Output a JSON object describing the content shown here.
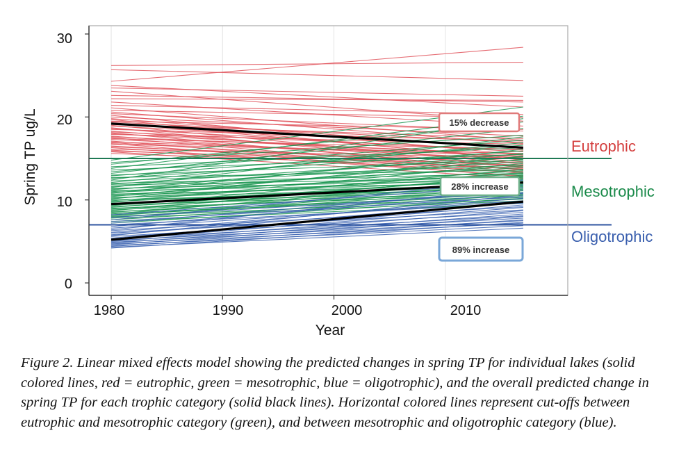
{
  "chart_data": {
    "type": "line",
    "xlabel": "Year",
    "ylabel": "Spring TP ug/L",
    "xlim": [
      1978,
      2021
    ],
    "ylim": [
      -1.5,
      31
    ],
    "xticks": [
      "1980",
      "1990",
      "2000",
      "2010"
    ],
    "yticks": [
      "0",
      "10",
      "20",
      "30"
    ],
    "grid": "vertical",
    "colors": {
      "eutrophic": "#e0525a",
      "mesotrophic": "#1a9550",
      "oligotrophic": "#3a62b0",
      "overall": "#000000"
    },
    "cutoffs": [
      {
        "category": "eutrophic-mesotrophic",
        "y": 15,
        "color": "#1f7a55"
      },
      {
        "category": "mesotrophic-oligotrophic",
        "y": 7,
        "color": "#2f55a0"
      }
    ],
    "category_labels": [
      {
        "text": "Eutrophic",
        "color": "#d4403f"
      },
      {
        "text": "Mesotrophic",
        "color": "#1a8a4a"
      },
      {
        "text": "Oligotrophic",
        "color": "#3a5fae"
      }
    ],
    "annotations": [
      {
        "text": "15% decrease",
        "border": "#e07a7a"
      },
      {
        "text": "28% increase",
        "border": "#6fb08a"
      },
      {
        "text": "89% increase",
        "border": "#7aa7d8"
      }
    ],
    "overall_series": [
      {
        "category": "eutrophic",
        "x": [
          1980,
          2017
        ],
        "y": [
          19.2,
          16.3
        ]
      },
      {
        "category": "mesotrophic",
        "x": [
          1980,
          2017
        ],
        "y": [
          9.5,
          12.1
        ]
      },
      {
        "category": "oligotrophic",
        "x": [
          1980,
          2017
        ],
        "y": [
          5.2,
          9.8
        ]
      }
    ],
    "lake_series": {
      "x": [
        1980,
        2017
      ],
      "eutrophic": [
        [
          26.2,
          26.6
        ],
        [
          25.7,
          24.4
        ],
        [
          24.3,
          28.4
        ],
        [
          23.8,
          21.2
        ],
        [
          23.5,
          22.5
        ],
        [
          23.1,
          19.5
        ],
        [
          22.6,
          21.8
        ],
        [
          22.2,
          22.0
        ],
        [
          21.8,
          18.9
        ],
        [
          21.4,
          20.3
        ],
        [
          21.1,
          17.2
        ],
        [
          20.8,
          19.9
        ],
        [
          20.6,
          16.8
        ],
        [
          20.4,
          18.3
        ],
        [
          20.2,
          15.4
        ],
        [
          20.0,
          17.7
        ],
        [
          19.8,
          16.2
        ],
        [
          19.7,
          14.8
        ],
        [
          19.5,
          18.5
        ],
        [
          19.4,
          16.9
        ],
        [
          19.3,
          15.0
        ],
        [
          19.1,
          17.4
        ],
        [
          19.0,
          14.3
        ],
        [
          18.9,
          16.4
        ],
        [
          18.7,
          13.9
        ],
        [
          18.6,
          15.8
        ],
        [
          18.5,
          17.1
        ],
        [
          18.3,
          14.6
        ],
        [
          18.2,
          16.0
        ],
        [
          18.1,
          13.6
        ],
        [
          18.0,
          15.2
        ],
        [
          17.9,
          16.7
        ],
        [
          17.7,
          14.1
        ],
        [
          17.6,
          15.5
        ],
        [
          17.5,
          13.4
        ],
        [
          17.4,
          16.1
        ],
        [
          17.3,
          14.9
        ],
        [
          17.1,
          13.2
        ],
        [
          17.0,
          15.3
        ],
        [
          16.9,
          14.0
        ],
        [
          16.8,
          12.8
        ],
        [
          16.7,
          15.6
        ],
        [
          16.5,
          13.7
        ],
        [
          16.4,
          14.5
        ],
        [
          16.3,
          12.9
        ],
        [
          16.1,
          15.1
        ],
        [
          16.0,
          13.3
        ],
        [
          15.9,
          14.2
        ],
        [
          15.8,
          12.6
        ],
        [
          15.6,
          13.8
        ]
      ],
      "mesotrophic": [
        [
          14.8,
          21.2
        ],
        [
          14.5,
          17.8
        ],
        [
          14.3,
          19.4
        ],
        [
          14.0,
          16.3
        ],
        [
          13.8,
          20.1
        ],
        [
          13.6,
          15.5
        ],
        [
          13.4,
          17.2
        ],
        [
          13.2,
          18.6
        ],
        [
          13.0,
          14.8
        ],
        [
          12.9,
          16.6
        ],
        [
          12.7,
          13.6
        ],
        [
          12.6,
          15.9
        ],
        [
          12.4,
          19.8
        ],
        [
          12.3,
          14.2
        ],
        [
          12.1,
          16.9
        ],
        [
          12.0,
          13.2
        ],
        [
          11.9,
          15.2
        ],
        [
          11.8,
          12.7
        ],
        [
          11.6,
          14.6
        ],
        [
          11.5,
          17.6
        ],
        [
          11.4,
          12.4
        ],
        [
          11.3,
          13.9
        ],
        [
          11.2,
          15.6
        ],
        [
          11.1,
          12.1
        ],
        [
          11.0,
          14.1
        ],
        [
          10.9,
          13.1
        ],
        [
          10.8,
          16.1
        ],
        [
          10.7,
          11.8
        ],
        [
          10.6,
          13.5
        ],
        [
          10.5,
          12.3
        ],
        [
          10.4,
          14.9
        ],
        [
          10.3,
          11.6
        ],
        [
          10.2,
          12.9
        ],
        [
          10.1,
          15.3
        ],
        [
          10.0,
          11.4
        ],
        [
          9.9,
          13.3
        ],
        [
          9.8,
          12.0
        ],
        [
          9.7,
          14.4
        ],
        [
          9.6,
          11.2
        ],
        [
          9.5,
          12.6
        ],
        [
          9.4,
          10.9
        ],
        [
          9.3,
          13.7
        ],
        [
          9.2,
          11.7
        ],
        [
          9.1,
          12.8
        ],
        [
          9.0,
          10.7
        ],
        [
          8.9,
          12.2
        ],
        [
          8.8,
          11.1
        ],
        [
          8.7,
          13.0
        ],
        [
          8.6,
          10.5
        ],
        [
          8.5,
          11.9
        ],
        [
          8.4,
          10.3
        ],
        [
          8.3,
          12.5
        ],
        [
          8.2,
          10.8
        ],
        [
          8.1,
          11.5
        ],
        [
          8.0,
          10.1
        ],
        [
          7.9,
          11.3
        ],
        [
          7.8,
          9.9
        ],
        [
          7.6,
          10.6
        ],
        [
          7.4,
          9.6
        ],
        [
          7.2,
          10.2
        ]
      ],
      "oligotrophic": [
        [
          8.2,
          11.8
        ],
        [
          7.9,
          10.9
        ],
        [
          7.6,
          12.4
        ],
        [
          7.4,
          10.4
        ],
        [
          7.2,
          11.2
        ],
        [
          7.0,
          9.6
        ],
        [
          6.8,
          10.8
        ],
        [
          6.6,
          9.9
        ],
        [
          6.4,
          11.5
        ],
        [
          6.3,
          9.2
        ],
        [
          6.1,
          10.2
        ],
        [
          6.0,
          8.8
        ],
        [
          5.8,
          9.7
        ],
        [
          5.7,
          10.6
        ],
        [
          5.6,
          8.5
        ],
        [
          5.4,
          9.4
        ],
        [
          5.3,
          8.1
        ],
        [
          5.2,
          9.1
        ],
        [
          5.1,
          7.8
        ],
        [
          5.0,
          8.7
        ],
        [
          4.9,
          7.5
        ],
        [
          4.8,
          8.3
        ],
        [
          4.7,
          7.2
        ],
        [
          4.6,
          8.0
        ],
        [
          4.5,
          6.9
        ],
        [
          4.4,
          7.6
        ],
        [
          4.3,
          6.6
        ],
        [
          4.2,
          7.3
        ]
      ]
    }
  },
  "caption": "Figure 2.  Linear mixed effects model showing the predicted changes in spring TP for individual lakes (solid colored lines, red = eutrophic, green = mesotrophic, blue = oligotrophic), and the overall predicted change in spring TP for each trophic category (solid black lines).  Horizontal colored lines represent cut-offs between eutrophic and mesotrophic category (green), and between mesotrophic and oligotrophic category (blue)."
}
